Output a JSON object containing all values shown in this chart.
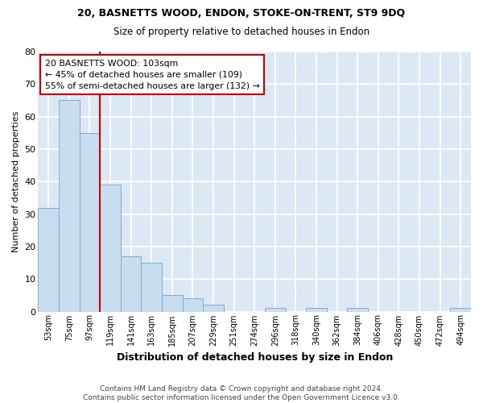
{
  "title1": "20, BASNETTS WOOD, ENDON, STOKE-ON-TRENT, ST9 9DQ",
  "title2": "Size of property relative to detached houses in Endon",
  "xlabel": "Distribution of detached houses by size in Endon",
  "ylabel": "Number of detached properties",
  "footer": "Contains HM Land Registry data © Crown copyright and database right 2024.\nContains public sector information licensed under the Open Government Licence v3.0.",
  "bin_labels": [
    "53sqm",
    "75sqm",
    "97sqm",
    "119sqm",
    "141sqm",
    "163sqm",
    "185sqm",
    "207sqm",
    "229sqm",
    "251sqm",
    "274sqm",
    "296sqm",
    "318sqm",
    "340sqm",
    "362sqm",
    "384sqm",
    "406sqm",
    "428sqm",
    "450sqm",
    "472sqm",
    "494sqm"
  ],
  "bar_heights": [
    32,
    65,
    55,
    39,
    17,
    15,
    5,
    4,
    2,
    0,
    0,
    1,
    0,
    1,
    0,
    1,
    0,
    0,
    0,
    0,
    1
  ],
  "bar_color": "#c8ddf0",
  "bar_edge_color": "#7bafd4",
  "figure_bg": "#ffffff",
  "axes_bg": "#dde8f5",
  "grid_color": "#ffffff",
  "vline_x": 2.5,
  "vline_color": "#cc0000",
  "annotation_text": "20 BASNETTS WOOD: 103sqm\n← 45% of detached houses are smaller (109)\n55% of semi-detached houses are larger (132) →",
  "annotation_box_color": "#ffffff",
  "annotation_box_edge": "#cc0000",
  "ylim": [
    0,
    80
  ],
  "yticks": [
    0,
    10,
    20,
    30,
    40,
    50,
    60,
    70,
    80
  ]
}
